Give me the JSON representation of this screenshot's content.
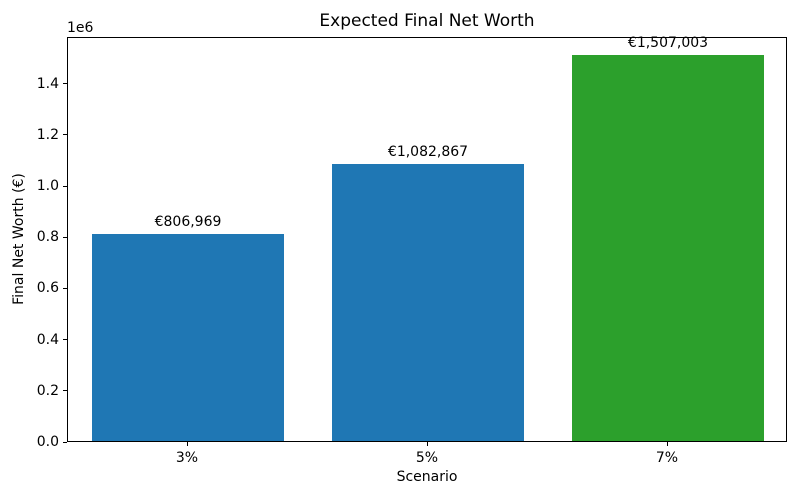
{
  "chart_data": {
    "type": "bar",
    "title": "Expected Final Net Worth",
    "xlabel": "Scenario",
    "ylabel": "Final Net Worth (€)",
    "categories": [
      "3%",
      "5%",
      "7%"
    ],
    "values": [
      806969,
      1082867,
      1507003
    ],
    "bar_labels": [
      "€806,969",
      "€1,082,867",
      "€1,507,003"
    ],
    "bar_colors": [
      "#1f77b4",
      "#1f77b4",
      "#2ca02c"
    ],
    "ylim": [
      0,
      1582353
    ],
    "y_tick_values": [
      0,
      200000,
      400000,
      600000,
      800000,
      1000000,
      1200000,
      1400000
    ],
    "y_tick_labels": [
      "0.0",
      "0.2",
      "0.4",
      "0.6",
      "0.8",
      "1.0",
      "1.2",
      "1.4"
    ],
    "y_scale_label": "1e6",
    "grid": false,
    "bar_width_fraction": 0.8
  }
}
